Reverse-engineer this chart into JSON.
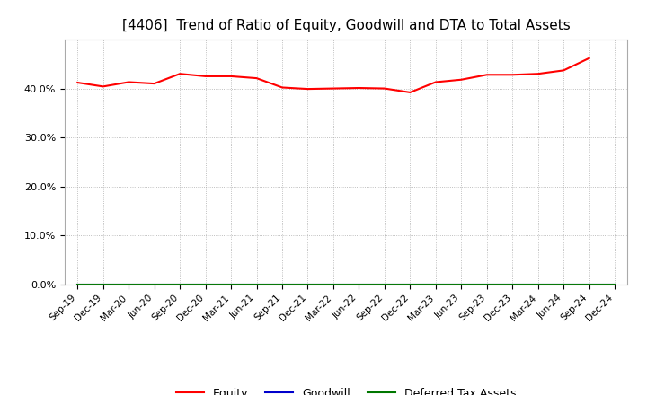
{
  "title": "[4406]  Trend of Ratio of Equity, Goodwill and DTA to Total Assets",
  "x_labels": [
    "Sep-19",
    "Dec-19",
    "Mar-20",
    "Jun-20",
    "Sep-20",
    "Dec-20",
    "Mar-21",
    "Jun-21",
    "Sep-21",
    "Dec-21",
    "Mar-22",
    "Jun-22",
    "Sep-22",
    "Dec-22",
    "Mar-23",
    "Jun-23",
    "Sep-23",
    "Dec-23",
    "Mar-24",
    "Jun-24",
    "Sep-24",
    "Dec-24"
  ],
  "equity": [
    0.412,
    0.404,
    0.413,
    0.41,
    0.43,
    0.425,
    0.425,
    0.421,
    0.402,
    0.399,
    0.4,
    0.401,
    0.4,
    0.392,
    0.413,
    0.418,
    0.428,
    0.428,
    0.43,
    0.437,
    0.462,
    null
  ],
  "goodwill": [
    0.0,
    0.0,
    0.0,
    0.0,
    0.0,
    0.0,
    0.0,
    0.0,
    0.0,
    0.0,
    0.0,
    0.0,
    0.0,
    0.0,
    0.0,
    0.0,
    0.0,
    0.0,
    0.0,
    0.0,
    0.0,
    0.0
  ],
  "dta": [
    0.0,
    0.0,
    0.0,
    0.0,
    0.0,
    0.0,
    0.0,
    0.0,
    0.0,
    0.0,
    0.0,
    0.0,
    0.0,
    0.0,
    0.0,
    0.0,
    0.0,
    0.0,
    0.0,
    0.0,
    0.0,
    0.0
  ],
  "equity_color": "#ff0000",
  "goodwill_color": "#0000cc",
  "dta_color": "#007700",
  "background_color": "#ffffff",
  "plot_bg_color": "#ffffff",
  "grid_color": "#999999",
  "ylim": [
    0.0,
    0.5
  ],
  "yticks": [
    0.0,
    0.1,
    0.2,
    0.3,
    0.4
  ],
  "title_fontsize": 11,
  "legend_labels": [
    "Equity",
    "Goodwill",
    "Deferred Tax Assets"
  ]
}
